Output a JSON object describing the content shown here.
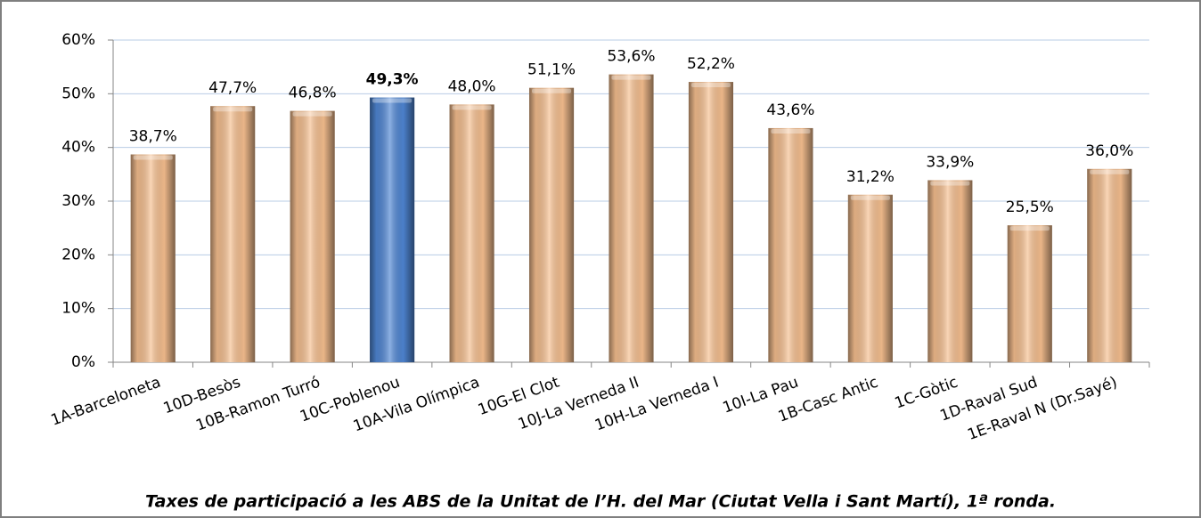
{
  "chart_data": {
    "type": "bar",
    "title": "Taxes de participació a les ABS de la Unitat de l’H. del Mar (Ciutat Vella i Sant Martí), 1ª ronda.",
    "categories": [
      "1A-Barceloneta",
      "10D-Besòs",
      "10B-Ramon Turró",
      "10C-Poblenou",
      "10A-Vila Olímpica",
      "10G-El Clot",
      "10J-La Verneda II",
      "10H-La Verneda I",
      "10I-La Pau",
      "1B-Casc Antic",
      "1C-Gòtic",
      "1D-Raval Sud",
      "1E-Raval N (Dr.Sayé)"
    ],
    "values": [
      38.7,
      47.7,
      46.8,
      49.3,
      48.0,
      51.1,
      53.6,
      52.2,
      43.6,
      31.2,
      33.9,
      25.5,
      36.0
    ],
    "value_labels": [
      "38,7%",
      "47,7%",
      "46,8%",
      "49,3%",
      "48,0%",
      "51,1%",
      "53,6%",
      "52,2%",
      "43,6%",
      "31,2%",
      "33,9%",
      "25,5%",
      "36,0%"
    ],
    "color": "#f6bf8f",
    "colors": [
      "#f6bf8f",
      "#f6bf8f",
      "#f6bf8f",
      "#4f86d4",
      "#f6bf8f",
      "#f6bf8f",
      "#f6bf8f",
      "#f6bf8f",
      "#f6bf8f",
      "#f6bf8f",
      "#f6bf8f",
      "#f6bf8f",
      "#f6bf8f"
    ],
    "ylim": [
      0,
      60
    ],
    "yticks": [
      {
        "value": 0,
        "label": "0%"
      },
      {
        "value": 10,
        "label": "10%"
      },
      {
        "value": 20,
        "label": "20%"
      },
      {
        "value": 30,
        "label": "30%"
      },
      {
        "value": 40,
        "label": "40%"
      },
      {
        "value": 50,
        "label": "50%"
      },
      {
        "value": 60,
        "label": "60%"
      }
    ],
    "grid": true
  }
}
